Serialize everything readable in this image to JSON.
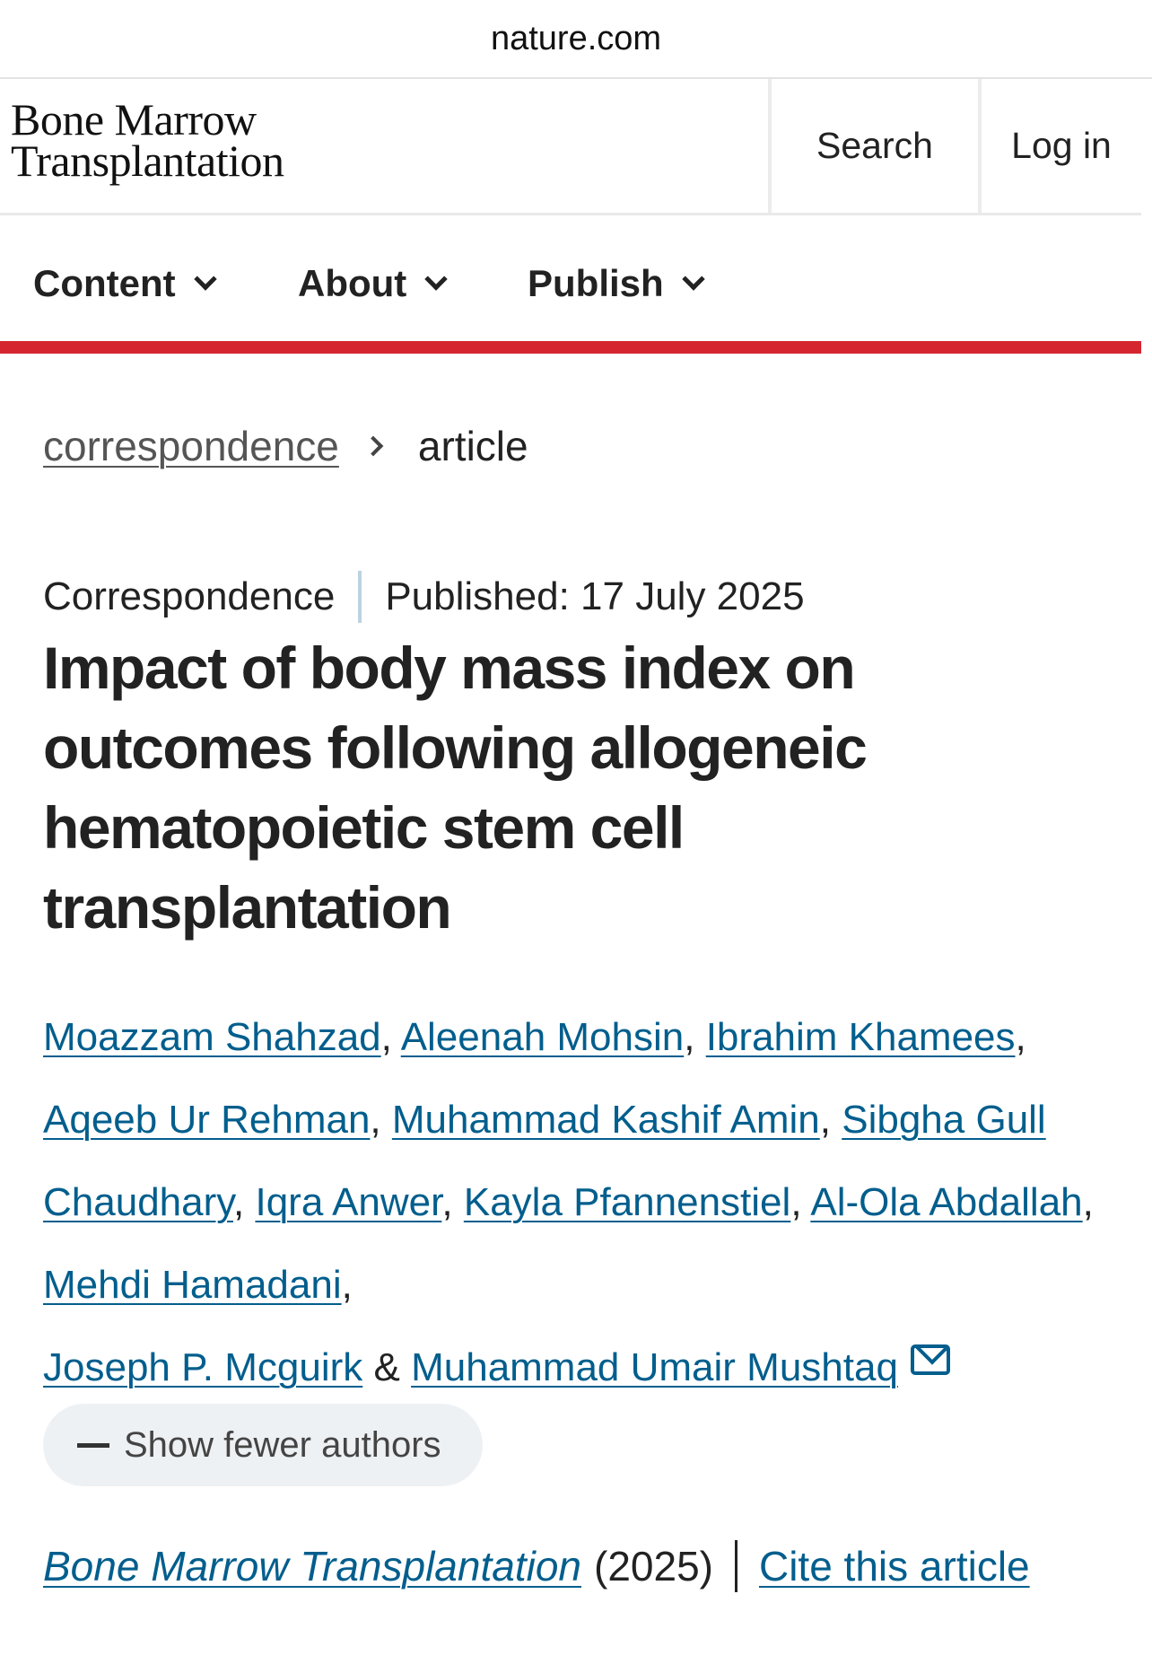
{
  "browser": {
    "url": "nature.com"
  },
  "header": {
    "logo_line1": "Bone Marrow",
    "logo_line2": "Transplantation",
    "search_label": "Search",
    "login_label": "Log in"
  },
  "nav": {
    "items": [
      {
        "label": "Content"
      },
      {
        "label": "About"
      },
      {
        "label": "Publish"
      }
    ],
    "accent_color": "#d5262f"
  },
  "breadcrumb": {
    "parent": "correspondence",
    "current": "article"
  },
  "article": {
    "type": "Correspondence",
    "published": "Published: 17 July 2025",
    "title": "Impact of body mass index on outcomes following allogeneic hematopoietic stem cell transplantation",
    "authors": [
      "Moazzam Shahzad",
      "Aleenah Mohsin",
      "Ibrahim Khamees",
      "Aqeeb Ur Rehman",
      "Muhammad Kashif Amin",
      "Sibgha Gull Chaudhary",
      "Iqra Anwer",
      "Kayla Pfannenstiel",
      "Al-Ola Abdallah",
      "Mehdi Hamadani",
      "Joseph P. Mcguirk",
      "Muhammad Umair Mushtaq"
    ],
    "separator_comma": ",",
    "separator_and": "&",
    "show_fewer_label": "Show fewer authors",
    "journal": "Bone Marrow Transplantation",
    "year": "(2025)",
    "cite_label": "Cite this article",
    "link_color": "#025e8d"
  }
}
